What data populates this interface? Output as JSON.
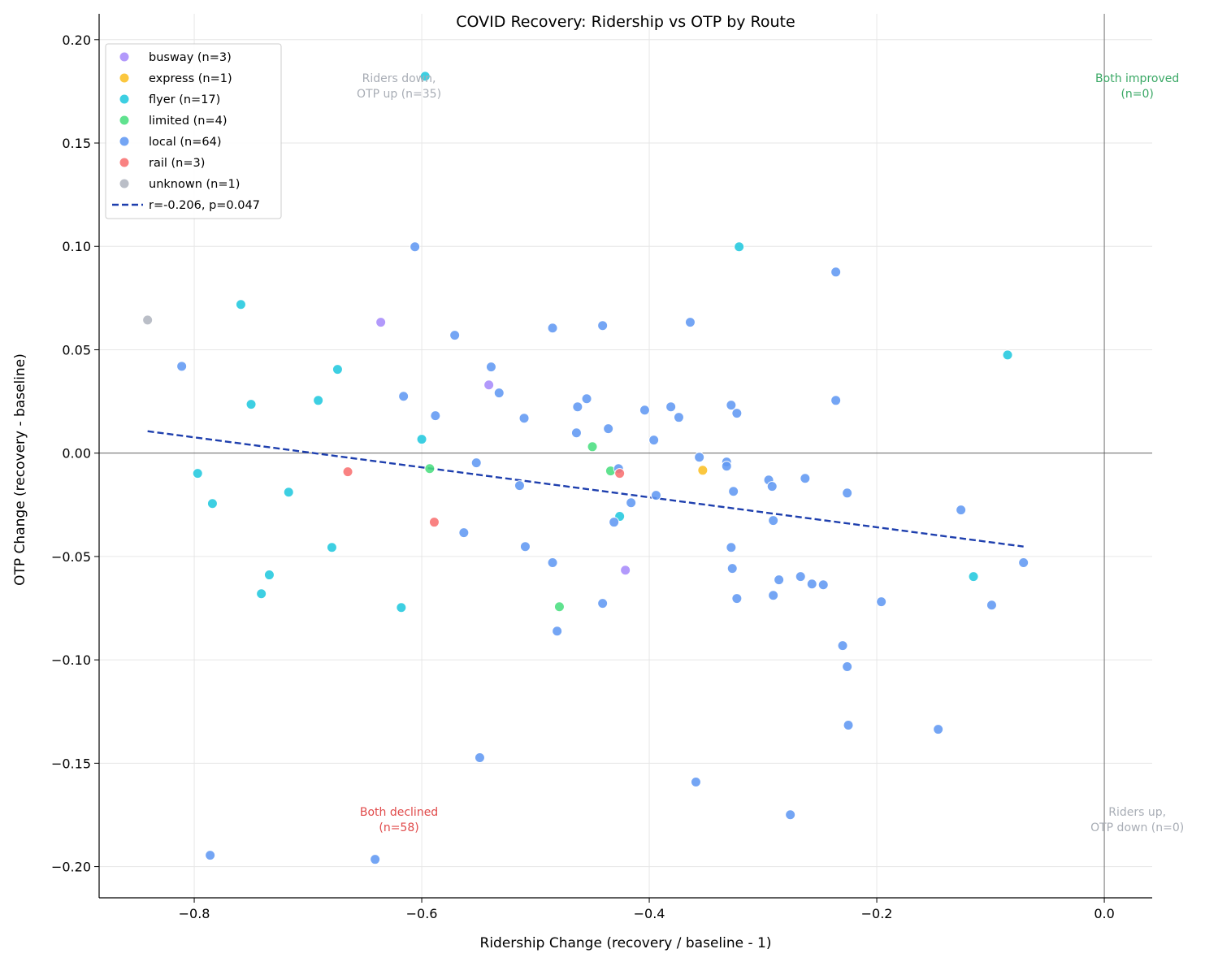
{
  "chart_data": {
    "type": "scatter",
    "title": "COVID Recovery: Ridership vs OTP by Route",
    "xlabel": "Ridership Change (recovery / baseline - 1)",
    "ylabel": "OTP Change (recovery - baseline)",
    "xlim": [
      -0.8836,
      0.0421
    ],
    "ylim": [
      -0.2151,
      0.2125
    ],
    "xticks": [
      -0.8,
      -0.6,
      -0.4,
      -0.2,
      0.0
    ],
    "xtick_labels": [
      "−0.8",
      "−0.6",
      "−0.4",
      "−0.2",
      "0.0"
    ],
    "yticks": [
      0.2,
      0.15,
      0.1,
      0.05,
      0.0,
      -0.05,
      -0.1,
      -0.15,
      -0.2
    ],
    "ytick_labels": [
      "0.20",
      "0.15",
      "0.10",
      "0.05",
      "0.00",
      "−0.05",
      "−0.10",
      "−0.15",
      "−0.20"
    ],
    "grid": true,
    "legend_placement": "top-left",
    "reference_lines": {
      "x": 0.0,
      "y": 0.0
    },
    "series": [
      {
        "name": "busway (n=3)",
        "color": "#a78bfa",
        "points": [
          [
            -0.636,
            0.0633
          ],
          [
            -0.541,
            0.033
          ],
          [
            -0.421,
            -0.0566
          ]
        ]
      },
      {
        "name": "express (n=1)",
        "color": "#fbbf24",
        "points": [
          [
            -0.353,
            -0.0083
          ]
        ]
      },
      {
        "name": "flyer (n=17)",
        "color": "#22c8de",
        "points": [
          [
            -0.597,
            0.1823
          ],
          [
            -0.321,
            0.0998
          ],
          [
            -0.759,
            0.0719
          ],
          [
            -0.085,
            0.0475
          ],
          [
            -0.674,
            0.0405
          ],
          [
            -0.75,
            0.0236
          ],
          [
            -0.691,
            0.0255
          ],
          [
            -0.6,
            0.0067
          ],
          [
            -0.797,
            -0.0098
          ],
          [
            -0.784,
            -0.0244
          ],
          [
            -0.717,
            -0.0189
          ],
          [
            -0.679,
            -0.0456
          ],
          [
            -0.734,
            -0.0589
          ],
          [
            -0.741,
            -0.068
          ],
          [
            -0.618,
            -0.0747
          ],
          [
            -0.426,
            -0.0306
          ],
          [
            -0.115,
            -0.0597
          ]
        ]
      },
      {
        "name": "limited (n=4)",
        "color": "#4ade80",
        "points": [
          [
            -0.45,
            0.0031
          ],
          [
            -0.593,
            -0.0075
          ],
          [
            -0.434,
            -0.0086
          ],
          [
            -0.479,
            -0.0743
          ]
        ]
      },
      {
        "name": "local (n=64)",
        "color": "#6199f3",
        "points": [
          [
            -0.606,
            0.0998
          ],
          [
            -0.236,
            0.0876
          ],
          [
            -0.811,
            0.042
          ],
          [
            -0.364,
            0.0633
          ],
          [
            -0.571,
            0.057
          ],
          [
            -0.485,
            0.0605
          ],
          [
            -0.441,
            0.0617
          ],
          [
            -0.539,
            0.0417
          ],
          [
            -0.532,
            0.0291
          ],
          [
            -0.616,
            0.0275
          ],
          [
            -0.588,
            0.0181
          ],
          [
            -0.51,
            0.0169
          ],
          [
            -0.463,
            0.0224
          ],
          [
            -0.455,
            0.0263
          ],
          [
            -0.464,
            0.0098
          ],
          [
            -0.436,
            0.0118
          ],
          [
            -0.404,
            0.0208
          ],
          [
            -0.381,
            0.0224
          ],
          [
            -0.374,
            0.0173
          ],
          [
            -0.396,
            0.0063
          ],
          [
            -0.328,
            0.0232
          ],
          [
            -0.323,
            0.0193
          ],
          [
            -0.236,
            0.0255
          ],
          [
            -0.552,
            -0.0047
          ],
          [
            -0.427,
            -0.0075
          ],
          [
            -0.356,
            -0.002
          ],
          [
            -0.332,
            -0.0043
          ],
          [
            -0.332,
            -0.0063
          ],
          [
            -0.514,
            -0.0157
          ],
          [
            -0.394,
            -0.0204
          ],
          [
            -0.416,
            -0.024
          ],
          [
            -0.295,
            -0.013
          ],
          [
            -0.292,
            -0.0161
          ],
          [
            -0.263,
            -0.0122
          ],
          [
            -0.326,
            -0.0185
          ],
          [
            -0.226,
            -0.0193
          ],
          [
            -0.563,
            -0.0385
          ],
          [
            -0.431,
            -0.0334
          ],
          [
            -0.291,
            -0.0326
          ],
          [
            -0.509,
            -0.0452
          ],
          [
            -0.328,
            -0.0456
          ],
          [
            -0.126,
            -0.0275
          ],
          [
            -0.485,
            -0.053
          ],
          [
            -0.327,
            -0.0558
          ],
          [
            -0.286,
            -0.0613
          ],
          [
            -0.267,
            -0.0597
          ],
          [
            -0.257,
            -0.0633
          ],
          [
            -0.247,
            -0.0637
          ],
          [
            -0.071,
            -0.053
          ],
          [
            -0.323,
            -0.0703
          ],
          [
            -0.291,
            -0.0688
          ],
          [
            -0.441,
            -0.0727
          ],
          [
            -0.196,
            -0.0719
          ],
          [
            -0.099,
            -0.0735
          ],
          [
            -0.481,
            -0.0861
          ],
          [
            -0.23,
            -0.0931
          ],
          [
            -0.226,
            -0.1033
          ],
          [
            -0.225,
            -0.1316
          ],
          [
            -0.146,
            -0.1336
          ],
          [
            -0.549,
            -0.1473
          ],
          [
            -0.359,
            -0.1591
          ],
          [
            -0.276,
            -0.1749
          ],
          [
            -0.786,
            -0.1945
          ],
          [
            -0.641,
            -0.1965
          ]
        ]
      },
      {
        "name": "rail (n=3)",
        "color": "#f87171",
        "points": [
          [
            -0.665,
            -0.009
          ],
          [
            -0.589,
            -0.0334
          ],
          [
            -0.426,
            -0.0098
          ]
        ]
      },
      {
        "name": "unknown (n=1)",
        "color": "#b0b5bf",
        "points": [
          [
            -0.841,
            0.0644
          ]
        ]
      }
    ],
    "trend_line": {
      "name": "r=-0.206, p=0.047",
      "color": "#1e3fae",
      "style": "dashed",
      "x": [
        -0.841,
        -0.071
      ],
      "y": [
        0.0106,
        -0.0452
      ]
    },
    "annotations": [
      {
        "lines": [
          "Riders down,",
          "OTP up (n=35)"
        ],
        "x": -0.62,
        "y": 0.178,
        "color": "#a8adb5"
      },
      {
        "lines": [
          "Both improved",
          "(n=0)"
        ],
        "x": 0.029,
        "y": 0.178,
        "color": "#3aa865"
      },
      {
        "lines": [
          "Both declined",
          "(n=58)"
        ],
        "x": -0.62,
        "y": -0.177,
        "color": "#e04a4a"
      },
      {
        "lines": [
          "Riders up,",
          "OTP down (n=0)"
        ],
        "x": 0.029,
        "y": -0.177,
        "color": "#a8adb5"
      }
    ]
  }
}
